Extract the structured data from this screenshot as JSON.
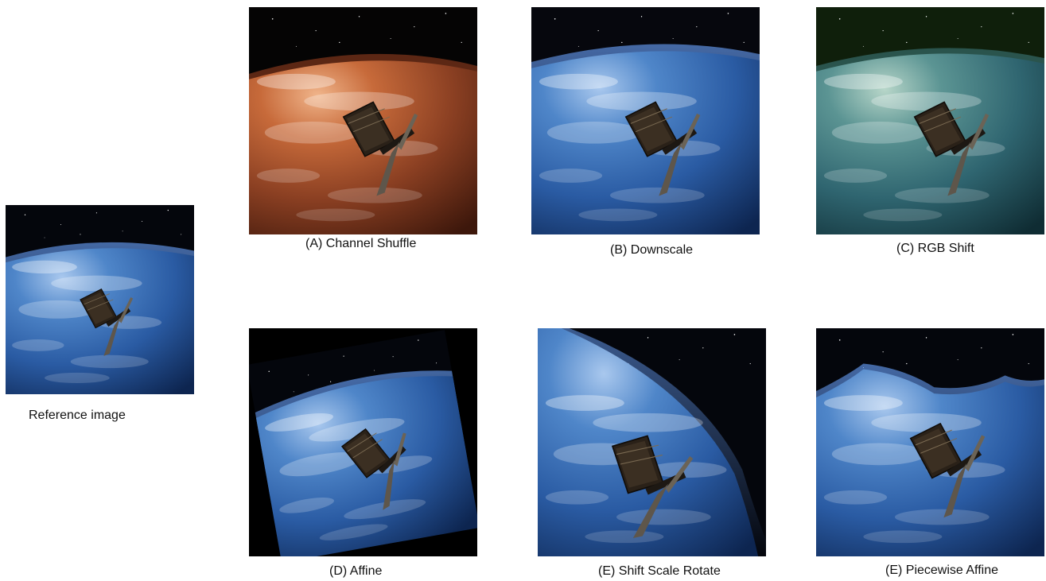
{
  "figure": {
    "reference": {
      "caption": "Reference image"
    },
    "panels": [
      {
        "caption": "(A) Channel Shuffle"
      },
      {
        "caption": "(B) Downscale"
      },
      {
        "caption": "(C) RGB Shift"
      },
      {
        "caption": "(D) Affine"
      },
      {
        "caption": "(E) Shift Scale Rotate"
      },
      {
        "caption": "(E) Piecewise Affine"
      }
    ]
  },
  "colors": {
    "earth_blue": "#3566b0",
    "earth_dark": "#0d2550",
    "channel_shuffle_earth": "#b4552a",
    "rgb_shift_earth": "#3f7a7e",
    "space": "#04060c",
    "rgb_shift_space": "#0f1f0b"
  }
}
